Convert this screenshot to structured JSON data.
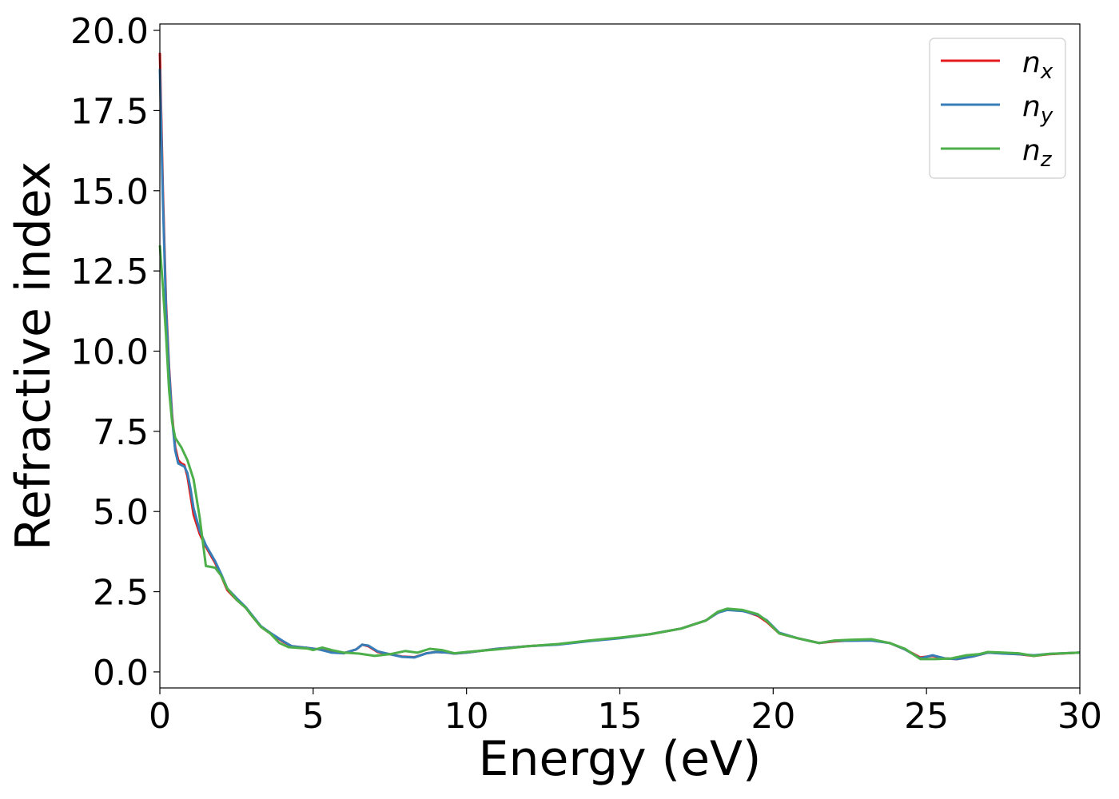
{
  "chart_data": {
    "type": "line",
    "xlabel": "Energy (eV)",
    "ylabel": "Refractive index",
    "xlim": [
      0,
      30
    ],
    "ylim": [
      -0.5,
      20.2
    ],
    "grid": false,
    "legend_placement": "top-right",
    "x_ticks": [
      "0",
      "5",
      "10",
      "15",
      "20",
      "25",
      "30"
    ],
    "x_tick_values": [
      0,
      5,
      10,
      15,
      20,
      25,
      30
    ],
    "y_ticks": [
      "0.0",
      "2.5",
      "5.0",
      "7.5",
      "10.0",
      "12.5",
      "15.0",
      "17.5",
      "20.0"
    ],
    "y_tick_values": [
      0,
      2.5,
      5,
      7.5,
      10,
      12.5,
      15,
      17.5,
      20
    ],
    "series": [
      {
        "name": "n_x",
        "label_base": "n",
        "label_sub": "x",
        "color": "#e41a1c",
        "points": [
          [
            0,
            19.3
          ],
          [
            0.1,
            15.0
          ],
          [
            0.2,
            11.5
          ],
          [
            0.3,
            9.5
          ],
          [
            0.4,
            8.0
          ],
          [
            0.5,
            7.0
          ],
          [
            0.6,
            6.6
          ],
          [
            0.7,
            6.5
          ],
          [
            0.8,
            6.45
          ],
          [
            0.9,
            6.1
          ],
          [
            1.0,
            5.5
          ],
          [
            1.1,
            4.9
          ],
          [
            1.3,
            4.3
          ],
          [
            1.5,
            3.9
          ],
          [
            1.8,
            3.4
          ],
          [
            2.0,
            3.0
          ],
          [
            2.2,
            2.55
          ],
          [
            2.5,
            2.25
          ],
          [
            2.8,
            2.0
          ],
          [
            3.0,
            1.75
          ],
          [
            3.3,
            1.4
          ],
          [
            3.6,
            1.2
          ],
          [
            4.0,
            0.95
          ],
          [
            4.3,
            0.8
          ],
          [
            4.8,
            0.75
          ],
          [
            5.2,
            0.7
          ],
          [
            5.6,
            0.62
          ],
          [
            6.0,
            0.58
          ],
          [
            6.4,
            0.7
          ],
          [
            6.6,
            0.85
          ],
          [
            6.8,
            0.8
          ],
          [
            7.1,
            0.62
          ],
          [
            7.5,
            0.55
          ],
          [
            7.9,
            0.48
          ],
          [
            8.3,
            0.46
          ],
          [
            8.7,
            0.58
          ],
          [
            9.0,
            0.62
          ],
          [
            9.4,
            0.6
          ],
          [
            9.6,
            0.57
          ],
          [
            10,
            0.6
          ],
          [
            11,
            0.72
          ],
          [
            12,
            0.8
          ],
          [
            13,
            0.86
          ],
          [
            14,
            0.97
          ],
          [
            15,
            1.06
          ],
          [
            16,
            1.18
          ],
          [
            17,
            1.35
          ],
          [
            17.8,
            1.6
          ],
          [
            18.2,
            1.85
          ],
          [
            18.5,
            1.95
          ],
          [
            19.0,
            1.92
          ],
          [
            19.5,
            1.75
          ],
          [
            19.8,
            1.55
          ],
          [
            20.2,
            1.2
          ],
          [
            20.8,
            1.05
          ],
          [
            21.5,
            0.9
          ],
          [
            22,
            0.95
          ],
          [
            22.5,
            0.98
          ],
          [
            23.2,
            1.0
          ],
          [
            23.8,
            0.9
          ],
          [
            24.3,
            0.7
          ],
          [
            24.8,
            0.45
          ],
          [
            25.2,
            0.5
          ],
          [
            25.6,
            0.42
          ],
          [
            26.0,
            0.4
          ],
          [
            26.5,
            0.48
          ],
          [
            27.0,
            0.6
          ],
          [
            27.5,
            0.58
          ],
          [
            28.0,
            0.55
          ],
          [
            28.5,
            0.5
          ],
          [
            29,
            0.55
          ],
          [
            30,
            0.6
          ]
        ]
      },
      {
        "name": "n_y",
        "label_base": "n",
        "label_sub": "y",
        "color": "#377eb8",
        "points": [
          [
            0,
            18.8
          ],
          [
            0.1,
            14.7
          ],
          [
            0.2,
            11.3
          ],
          [
            0.3,
            9.4
          ],
          [
            0.4,
            7.9
          ],
          [
            0.5,
            6.9
          ],
          [
            0.6,
            6.5
          ],
          [
            0.7,
            6.45
          ],
          [
            0.8,
            6.4
          ],
          [
            0.9,
            6.2
          ],
          [
            1.0,
            5.7
          ],
          [
            1.1,
            5.1
          ],
          [
            1.3,
            4.4
          ],
          [
            1.5,
            3.95
          ],
          [
            1.8,
            3.45
          ],
          [
            2.0,
            3.05
          ],
          [
            2.2,
            2.6
          ],
          [
            2.5,
            2.3
          ],
          [
            2.8,
            2.02
          ],
          [
            3.0,
            1.78
          ],
          [
            3.3,
            1.42
          ],
          [
            3.6,
            1.22
          ],
          [
            4.0,
            0.97
          ],
          [
            4.3,
            0.8
          ],
          [
            4.8,
            0.75
          ],
          [
            5.2,
            0.7
          ],
          [
            5.6,
            0.6
          ],
          [
            6.0,
            0.58
          ],
          [
            6.4,
            0.7
          ],
          [
            6.6,
            0.85
          ],
          [
            6.8,
            0.82
          ],
          [
            7.1,
            0.64
          ],
          [
            7.5,
            0.55
          ],
          [
            7.9,
            0.47
          ],
          [
            8.3,
            0.45
          ],
          [
            8.7,
            0.58
          ],
          [
            9.0,
            0.62
          ],
          [
            9.4,
            0.6
          ],
          [
            9.6,
            0.57
          ],
          [
            10,
            0.6
          ],
          [
            11,
            0.72
          ],
          [
            12,
            0.8
          ],
          [
            13,
            0.85
          ],
          [
            14,
            0.96
          ],
          [
            15,
            1.05
          ],
          [
            16,
            1.18
          ],
          [
            17,
            1.35
          ],
          [
            17.8,
            1.6
          ],
          [
            18.2,
            1.85
          ],
          [
            18.5,
            1.93
          ],
          [
            19.0,
            1.9
          ],
          [
            19.5,
            1.78
          ],
          [
            19.8,
            1.6
          ],
          [
            20.2,
            1.22
          ],
          [
            20.8,
            1.05
          ],
          [
            21.5,
            0.9
          ],
          [
            22,
            0.97
          ],
          [
            22.5,
            0.97
          ],
          [
            23.2,
            0.98
          ],
          [
            23.8,
            0.9
          ],
          [
            24.3,
            0.7
          ],
          [
            24.8,
            0.42
          ],
          [
            25.2,
            0.52
          ],
          [
            25.6,
            0.42
          ],
          [
            26.0,
            0.4
          ],
          [
            26.5,
            0.48
          ],
          [
            27.0,
            0.6
          ],
          [
            27.5,
            0.57
          ],
          [
            28.0,
            0.55
          ],
          [
            28.5,
            0.52
          ],
          [
            29,
            0.56
          ],
          [
            30,
            0.6
          ]
        ]
      },
      {
        "name": "n_z",
        "label_base": "n",
        "label_sub": "z",
        "color": "#4daf4a",
        "points": [
          [
            0,
            13.3
          ],
          [
            0.1,
            12.0
          ],
          [
            0.2,
            10.5
          ],
          [
            0.3,
            8.8
          ],
          [
            0.4,
            7.8
          ],
          [
            0.5,
            7.3
          ],
          [
            0.7,
            7.0
          ],
          [
            0.9,
            6.6
          ],
          [
            1.1,
            6.0
          ],
          [
            1.3,
            4.8
          ],
          [
            1.5,
            3.3
          ],
          [
            1.8,
            3.25
          ],
          [
            2.0,
            3.0
          ],
          [
            2.2,
            2.6
          ],
          [
            2.5,
            2.25
          ],
          [
            2.8,
            2.0
          ],
          [
            3.0,
            1.75
          ],
          [
            3.3,
            1.4
          ],
          [
            3.6,
            1.2
          ],
          [
            3.9,
            0.9
          ],
          [
            4.2,
            0.77
          ],
          [
            4.8,
            0.73
          ],
          [
            5.0,
            0.68
          ],
          [
            5.3,
            0.76
          ],
          [
            5.6,
            0.68
          ],
          [
            6.0,
            0.6
          ],
          [
            6.5,
            0.57
          ],
          [
            7.0,
            0.5
          ],
          [
            7.5,
            0.55
          ],
          [
            8.0,
            0.65
          ],
          [
            8.4,
            0.6
          ],
          [
            8.8,
            0.72
          ],
          [
            9.2,
            0.68
          ],
          [
            9.6,
            0.58
          ],
          [
            10,
            0.62
          ],
          [
            11,
            0.7
          ],
          [
            12,
            0.8
          ],
          [
            13,
            0.87
          ],
          [
            14,
            0.98
          ],
          [
            15,
            1.07
          ],
          [
            16,
            1.18
          ],
          [
            17,
            1.35
          ],
          [
            17.8,
            1.6
          ],
          [
            18.2,
            1.88
          ],
          [
            18.5,
            1.97
          ],
          [
            19.0,
            1.93
          ],
          [
            19.5,
            1.8
          ],
          [
            19.8,
            1.58
          ],
          [
            20.2,
            1.2
          ],
          [
            20.8,
            1.05
          ],
          [
            21.5,
            0.9
          ],
          [
            22,
            0.98
          ],
          [
            22.5,
            1.0
          ],
          [
            23.2,
            1.02
          ],
          [
            23.8,
            0.9
          ],
          [
            24.3,
            0.72
          ],
          [
            24.8,
            0.4
          ],
          [
            25.3,
            0.4
          ],
          [
            25.8,
            0.42
          ],
          [
            26.3,
            0.52
          ],
          [
            26.7,
            0.55
          ],
          [
            27.0,
            0.62
          ],
          [
            27.5,
            0.6
          ],
          [
            28.0,
            0.58
          ],
          [
            28.5,
            0.5
          ],
          [
            29,
            0.56
          ],
          [
            30,
            0.6
          ]
        ]
      }
    ]
  }
}
